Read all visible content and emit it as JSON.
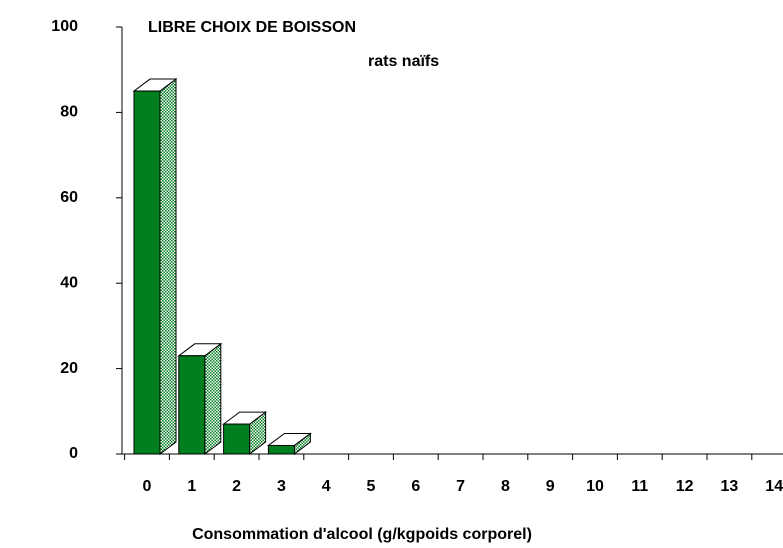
{
  "chart_data": {
    "type": "bar3d",
    "title": "LIBRE CHOIX DE BOISSON",
    "subtitle": "rats naïfs",
    "x_label": "Consommation d'alcool (g/kgpoids corporel)",
    "categories": [
      "0",
      "1",
      "2",
      "3",
      "4",
      "5",
      "6",
      "7",
      "8",
      "9",
      "10",
      "11",
      "12",
      "13",
      "14"
    ],
    "values": [
      85,
      23,
      7,
      2,
      0,
      0,
      0,
      0,
      0,
      0,
      0,
      0,
      0,
      0,
      0
    ],
    "color": "#007f1f",
    "ylim": [
      0,
      100
    ],
    "yticks": [
      0,
      20,
      40,
      60,
      80,
      100
    ]
  }
}
